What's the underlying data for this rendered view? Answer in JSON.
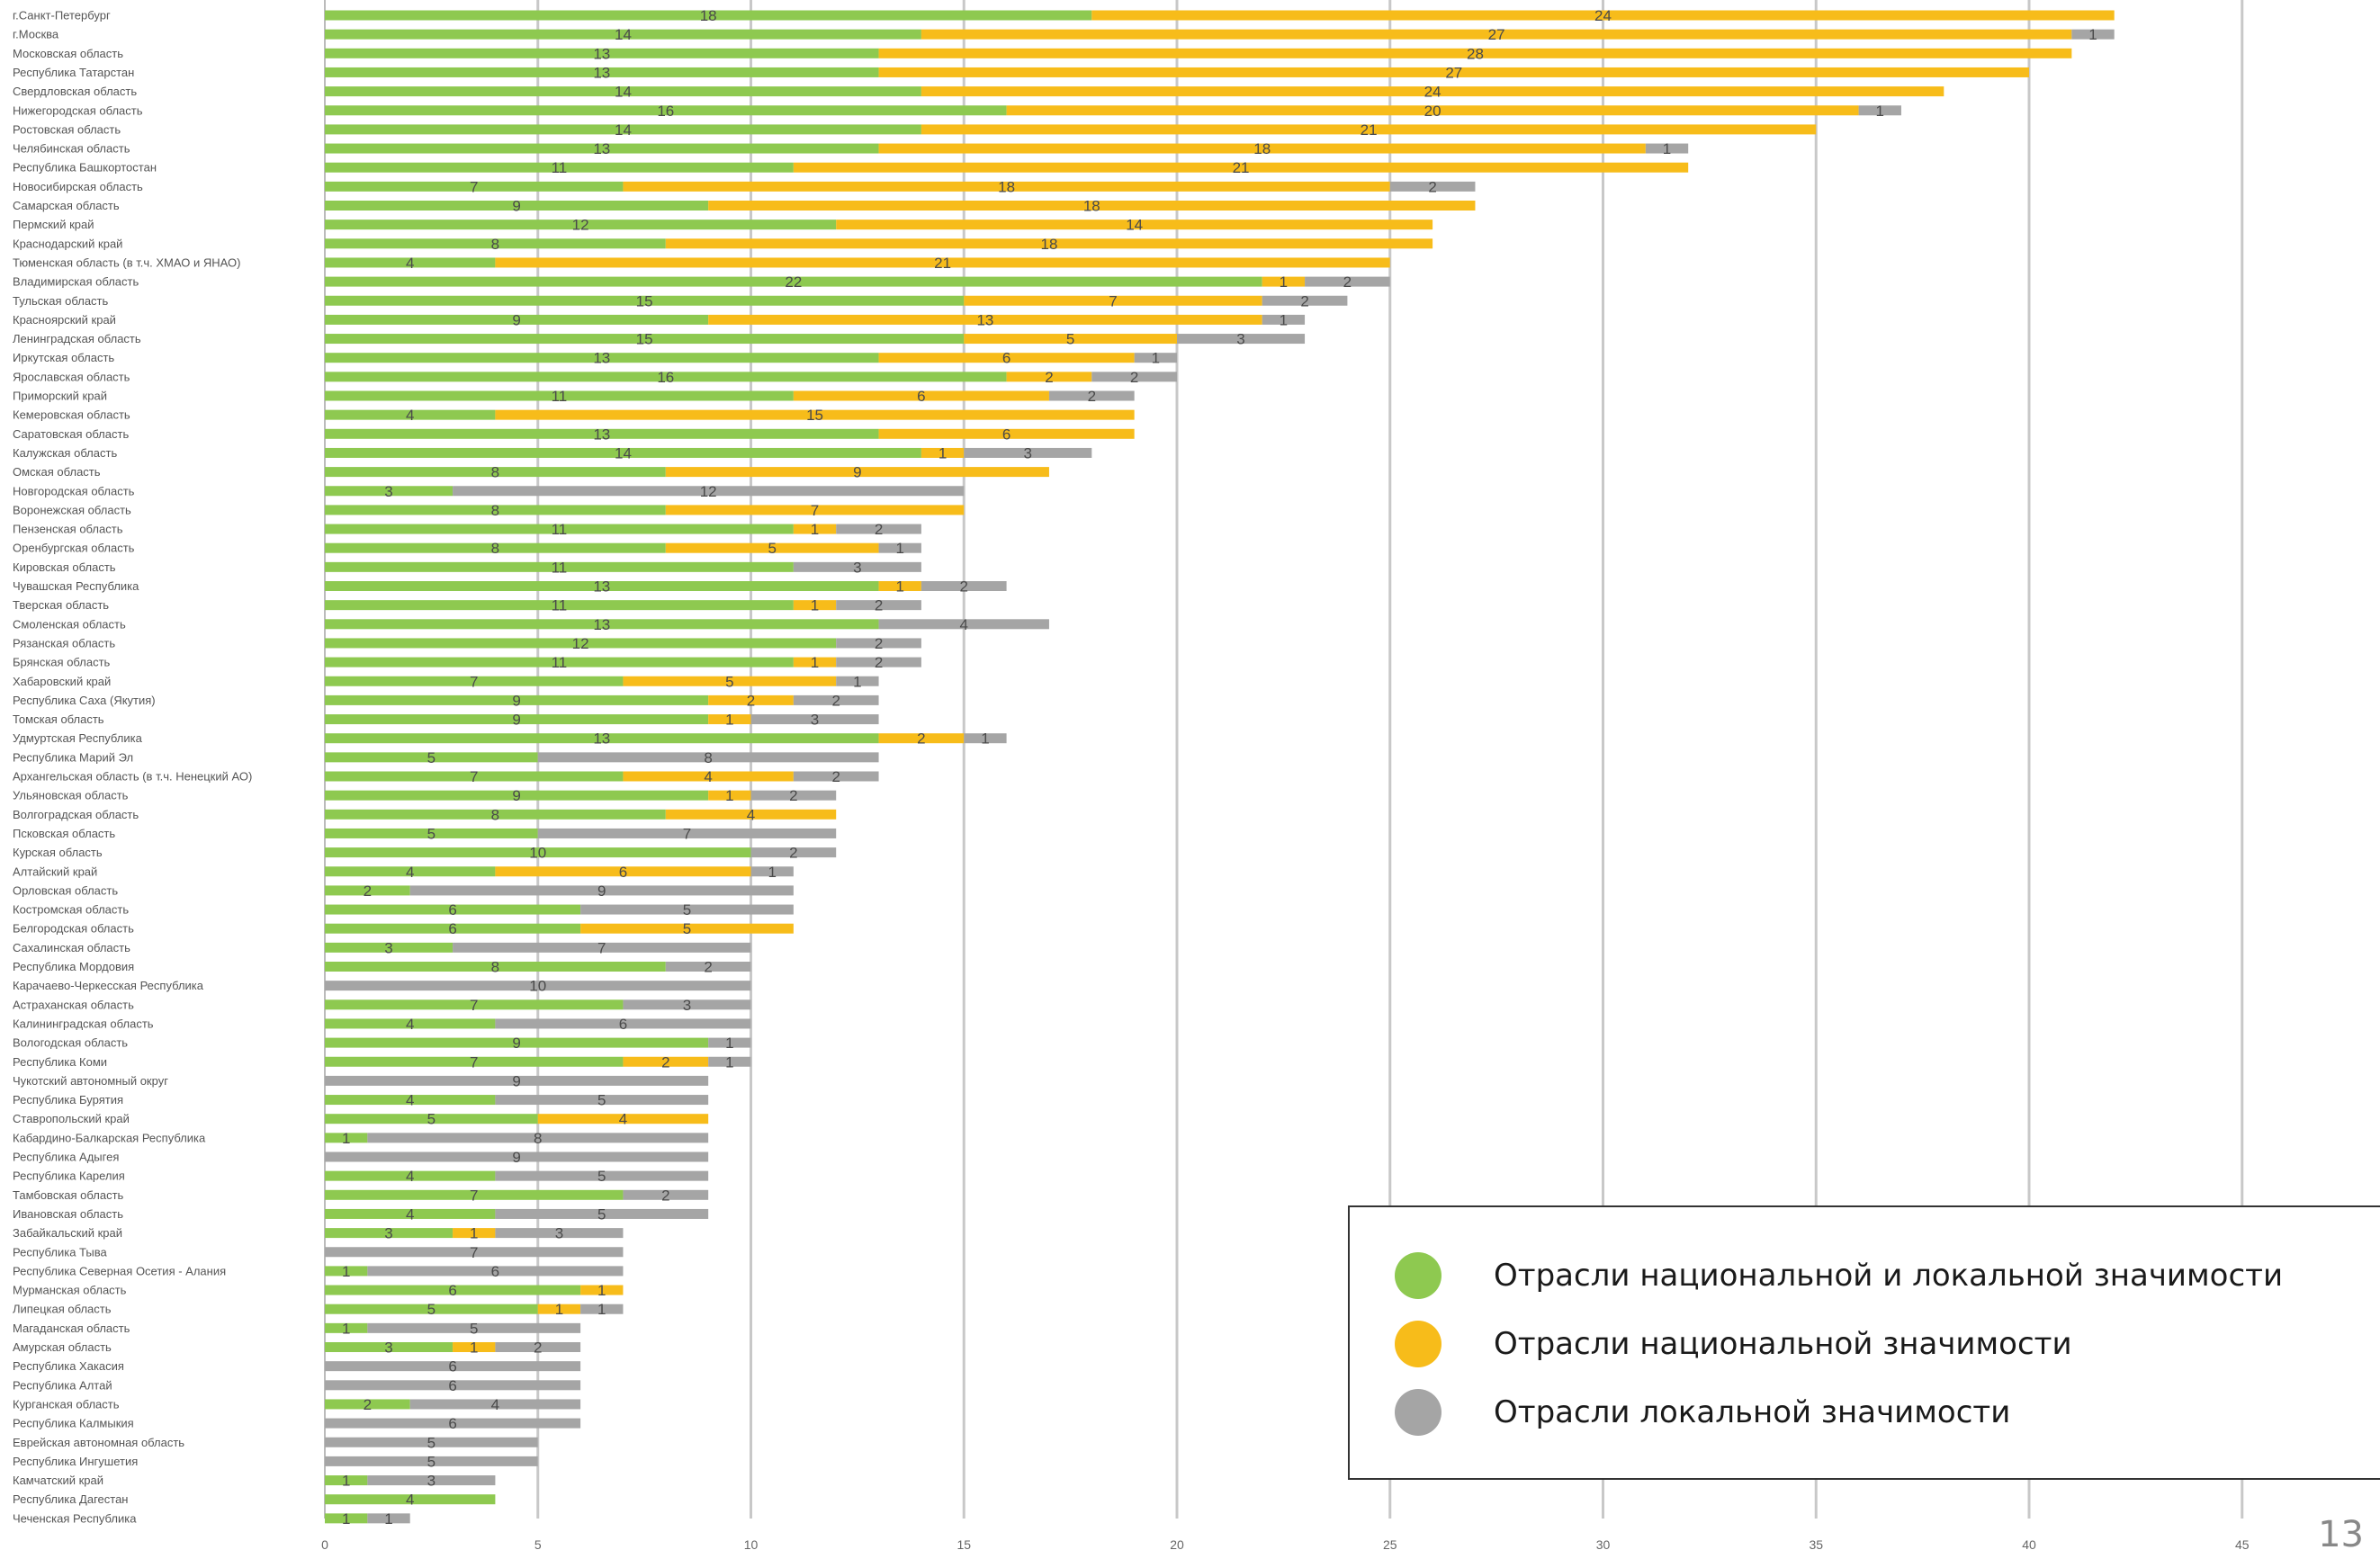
{
  "page_number": "13",
  "colors": {
    "national_local": "#8ec950",
    "national": "#f7bc1a",
    "local": "#a5a5a5",
    "grid": "#c8c8c8"
  },
  "legend": {
    "items": [
      {
        "label": "Отрасли национальной и локальной значимости",
        "color": "#8ec950"
      },
      {
        "label": "Отрасли национальной значимости",
        "color": "#f7bc1a"
      },
      {
        "label": "Отрасли локальной значимости",
        "color": "#a5a5a5"
      }
    ]
  },
  "chart_data": {
    "type": "bar",
    "orientation": "horizontal",
    "stacked": true,
    "title": "",
    "xlabel": "",
    "ylabel": "",
    "xlim": [
      0,
      48
    ],
    "xticks": [
      0,
      5,
      10,
      15,
      20,
      25,
      30,
      35,
      40,
      45
    ],
    "grid": "vertical",
    "legend_position": "bottom-right",
    "categories": [
      "г.Санкт-Петербург",
      "г.Москва",
      "Московская область",
      "Республика Татарстан",
      "Свердловская область",
      "Нижегородская область",
      "Ростовская область",
      "Челябинская область",
      "Республика Башкортостан",
      "Новосибирская область",
      "Самарская область",
      "Пермский край",
      "Краснодарский край",
      "Тюменская область (в т.ч. ХМАО и ЯНАО)",
      "Владимирская область",
      "Тульская область",
      "Красноярский край",
      "Ленинградская область",
      "Иркутская область",
      "Ярославская область",
      "Приморский край",
      "Кемеровская область",
      "Саратовская область",
      "Калужская область",
      "Омская область",
      "Новгородская область",
      "Воронежская область",
      "Пензенская область",
      "Оренбургская область",
      "Кировская область",
      "Чувашская Республика",
      "Тверская область",
      "Смоленская область",
      "Рязанская область",
      "Брянская область",
      "Хабаровский край",
      "Республика Саха (Якутия)",
      "Томская область",
      "Удмуртская Республика",
      "Республика Марий Эл",
      "Архангельская область (в т.ч. Ненецкий АО)",
      "Ульяновская область",
      "Волгоградская область",
      "Псковская область",
      "Курская область",
      "Алтайский край",
      "Орловская область",
      "Костромская область",
      "Белгородская область",
      "Сахалинская область",
      "Республика Мордовия",
      "Карачаево-Черкесская Республика",
      "Астраханская область",
      "Калининградская область",
      "Вологодская область",
      "Республика Коми",
      "Чукотский автономный округ",
      "Республика Бурятия",
      "Ставропольский край",
      "Кабардино-Балкарская Республика",
      "Республика Адыгея",
      "Республика Карелия",
      "Тамбовская область",
      "Ивановская область",
      "Забайкальский край",
      "Республика Тыва",
      "Республика Северная Осетия - Алания",
      "Мурманская область",
      "Липецкая область",
      "Магаданская область",
      "Амурская область",
      "Республика Хакасия",
      "Республика Алтай",
      "Курганская область",
      "Республика Калмыкия",
      "Еврейская автономная область",
      "Республика Ингушетия",
      "Камчатский край",
      "Республика Дагестан",
      "Чеченская Республика"
    ],
    "series": [
      {
        "name": "Отрасли национальной и локальной значимости",
        "values": [
          18,
          14,
          13,
          13,
          14,
          16,
          14,
          13,
          11,
          7,
          9,
          12,
          8,
          4,
          22,
          15,
          9,
          15,
          13,
          16,
          11,
          4,
          13,
          14,
          8,
          3,
          8,
          11,
          8,
          11,
          13,
          11,
          13,
          12,
          11,
          7,
          9,
          9,
          13,
          5,
          7,
          9,
          8,
          5,
          10,
          4,
          2,
          6,
          6,
          3,
          8,
          0,
          7,
          4,
          9,
          7,
          0,
          4,
          5,
          1,
          0,
          4,
          7,
          4,
          3,
          0,
          1,
          6,
          5,
          1,
          3,
          0,
          0,
          2,
          0,
          0,
          0,
          1,
          4,
          1
        ]
      },
      {
        "name": "Отрасли национальной значимости",
        "values": [
          24,
          27,
          28,
          27,
          24,
          20,
          21,
          18,
          21,
          18,
          18,
          14,
          18,
          21,
          1,
          7,
          13,
          5,
          6,
          2,
          6,
          15,
          6,
          1,
          9,
          0,
          7,
          1,
          5,
          0,
          1,
          1,
          0,
          0,
          1,
          5,
          2,
          1,
          2,
          0,
          4,
          1,
          4,
          0,
          0,
          6,
          0,
          0,
          5,
          0,
          0,
          0,
          0,
          0,
          0,
          2,
          0,
          0,
          4,
          0,
          0,
          0,
          0,
          0,
          1,
          0,
          0,
          1,
          1,
          0,
          1,
          0,
          0,
          0,
          0,
          0,
          0,
          0,
          0,
          0
        ]
      },
      {
        "name": "Отрасли локальной значимости",
        "values": [
          0,
          1,
          0,
          0,
          0,
          1,
          0,
          1,
          0,
          2,
          0,
          0,
          0,
          0,
          2,
          2,
          1,
          3,
          1,
          2,
          2,
          0,
          0,
          3,
          0,
          12,
          0,
          2,
          1,
          3,
          2,
          2,
          4,
          2,
          2,
          1,
          2,
          3,
          1,
          8,
          2,
          2,
          0,
          7,
          2,
          1,
          9,
          5,
          0,
          7,
          2,
          10,
          3,
          6,
          1,
          1,
          9,
          5,
          0,
          8,
          9,
          5,
          2,
          5,
          3,
          7,
          6,
          0,
          1,
          5,
          2,
          6,
          6,
          4,
          6,
          5,
          5,
          3,
          0,
          1
        ]
      }
    ],
    "labels": {
      "national_local": [
        "18",
        "14",
        "13",
        "13",
        "14",
        "16",
        "14",
        "13",
        "11",
        "7",
        "9",
        "12",
        "8",
        "4",
        "22",
        "15",
        "9",
        "15",
        "13",
        "16",
        "11",
        "4",
        "13",
        "14",
        "8",
        "3",
        "8",
        "11",
        "8",
        "11",
        "13",
        "11",
        "13",
        "12",
        "11",
        "7",
        "9",
        "9",
        "13",
        "5",
        "7",
        "9",
        "8",
        "5",
        "10",
        "4",
        "2",
        "6",
        "6",
        "3",
        "8",
        "",
        "7",
        "4",
        "9",
        "7",
        "",
        "4",
        "5",
        "1",
        "",
        "4",
        "7",
        "4",
        "3",
        "",
        "1",
        "6",
        "5",
        "1",
        "3",
        "",
        "",
        "2",
        "",
        "",
        "",
        "1",
        "4",
        "1"
      ],
      "national": [
        "24",
        "27",
        "28",
        "27",
        "24",
        "20",
        "21",
        "18",
        "21",
        "18",
        "18",
        "14",
        "18",
        "21",
        "1",
        "7",
        "13",
        "5",
        "6",
        "2",
        "6",
        "15",
        "6",
        "1",
        "9",
        "",
        "7",
        "1",
        "5",
        "",
        "1",
        "1",
        "",
        "",
        "1",
        "5",
        "2",
        "1",
        "2",
        "",
        "4",
        "1",
        "4",
        "",
        "",
        "6",
        "",
        "",
        "5",
        "",
        "",
        "",
        "",
        "",
        "",
        "2",
        "",
        "",
        "4",
        "",
        "",
        "",
        "",
        "",
        "1",
        "",
        "",
        "1",
        "1",
        "",
        "1",
        "",
        "",
        "",
        "",
        "",
        "",
        "",
        "",
        ""
      ],
      "local": [
        "",
        "1",
        "",
        "",
        "",
        "1",
        "",
        "1",
        "",
        "2",
        "",
        "",
        "",
        "",
        "2",
        "2",
        "1",
        "3",
        "1",
        "2",
        "2",
        "",
        "",
        "3",
        "",
        "12",
        "",
        "2",
        "1",
        "3",
        "2",
        "2",
        "4",
        "2",
        "2",
        "1",
        "2",
        "3",
        "1",
        "8",
        "2",
        "2",
        "",
        "7",
        "2",
        "1",
        "9",
        "5",
        "",
        "7",
        "2",
        "10",
        "3",
        "6",
        "1",
        "1",
        "9",
        "5",
        "",
        "8",
        "9",
        "5",
        "2",
        "5",
        "3",
        "7",
        "6",
        "",
        "1",
        "5",
        "2",
        "6",
        "6",
        "4",
        "6",
        "5",
        "5",
        "3",
        "",
        "1"
      ]
    }
  }
}
